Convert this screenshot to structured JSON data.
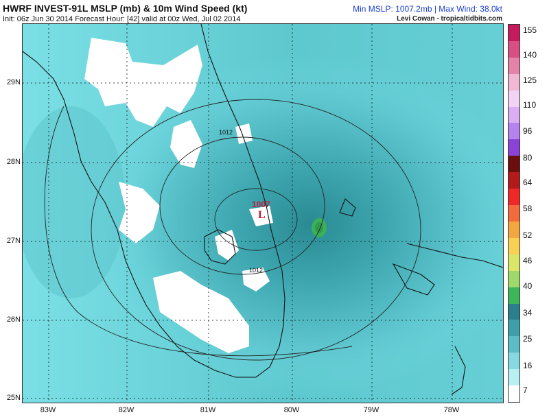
{
  "header": {
    "title": "HWRF INVEST-91L MSLP (mb) & 10m Wind Speed (kt)",
    "subtitle": "Init: 06z Jun 30 2014 Forecast Hour: [42] valid at 00z Wed, Jul 02 2014",
    "minmax": "Min MSLP: 1007.2mb | Max Wind: 38.0kt",
    "credit": "Levi Cowan - tropicaltidbits.com"
  },
  "map": {
    "lat_labels": [
      "29N",
      "28N",
      "27N",
      "26N",
      "25N"
    ],
    "lon_labels": [
      "83W",
      "82W",
      "81W",
      "80W",
      "79W",
      "78W"
    ],
    "low_pressure_value": "1007",
    "low_marker": "L",
    "isobar_labels": [
      "1012",
      "1012"
    ],
    "colors": {
      "ocean_base": "#6fd8e0",
      "land_low_wind": "#ffffff",
      "max_wind_core": "#3bb05a"
    }
  },
  "colorbar": {
    "labels": [
      "155",
      "140",
      "125",
      "110",
      "96",
      "80",
      "64",
      "58",
      "52",
      "46",
      "40",
      "34",
      "25",
      "16",
      "7"
    ],
    "colors": [
      "#c61a5e",
      "#d84f84",
      "#e383a7",
      "#f0b8d2",
      "#f3d3f3",
      "#d9aef3",
      "#b682ee",
      "#8a43d6",
      "#6a0e0e",
      "#b11b1b",
      "#ee2727",
      "#f36b3c",
      "#f4a640",
      "#f6d154",
      "#d9e66a",
      "#9fd96a",
      "#3db55a",
      "#2a7f8a",
      "#3e9ea9",
      "#5dbcc4",
      "#86d9df",
      "#b8f0f2",
      "#ffffff"
    ]
  }
}
